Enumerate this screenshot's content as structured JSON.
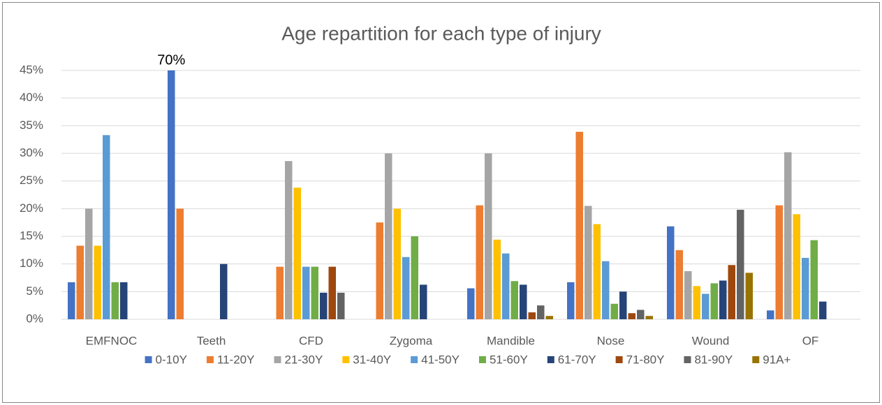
{
  "chart_data": {
    "type": "bar",
    "title": "Age repartition for each type of injury",
    "categories": [
      "EMFNOC",
      "Teeth",
      "CFD",
      "Zygoma",
      "Mandible",
      "Nose",
      "Wound",
      "OF"
    ],
    "series": [
      {
        "name": "0-10Y",
        "color": "#4472c4",
        "values": [
          6.7,
          70,
          0,
          0,
          5.6,
          6.7,
          16.8,
          1.6
        ],
        "value_labels": [
          null,
          "70%",
          null,
          null,
          null,
          null,
          null,
          null
        ]
      },
      {
        "name": "11-20Y",
        "color": "#ed7d31",
        "values": [
          13.3,
          20,
          9.5,
          17.5,
          20.6,
          33.9,
          12.5,
          20.6
        ]
      },
      {
        "name": "21-30Y",
        "color": "#a5a5a5",
        "values": [
          20,
          0,
          28.6,
          30,
          30,
          20.5,
          8.7,
          30.2
        ]
      },
      {
        "name": "31-40Y",
        "color": "#ffc000",
        "values": [
          13.3,
          0,
          23.8,
          20,
          14.4,
          17.2,
          6,
          19
        ]
      },
      {
        "name": "41-50Y",
        "color": "#5b9bd5",
        "values": [
          33.3,
          0,
          9.5,
          11.25,
          11.9,
          10.5,
          4.6,
          11.1
        ]
      },
      {
        "name": "51-60Y",
        "color": "#70ad47",
        "values": [
          6.7,
          0,
          9.5,
          15,
          6.9,
          2.8,
          6.5,
          14.3
        ]
      },
      {
        "name": "61-70Y",
        "color": "#264478",
        "values": [
          6.7,
          10,
          4.8,
          6.25,
          6.25,
          5,
          7,
          3.2
        ]
      },
      {
        "name": "71-80Y",
        "color": "#9e480e",
        "values": [
          0,
          0,
          9.5,
          0,
          1.25,
          1.1,
          9.8,
          0
        ]
      },
      {
        "name": "81-90Y",
        "color": "#636363",
        "values": [
          0,
          0,
          4.8,
          0,
          2.5,
          1.7,
          19.8,
          0
        ]
      },
      {
        "name": "91A+",
        "color": "#997300",
        "values": [
          0,
          0,
          0,
          0,
          0.6,
          0.6,
          8.4,
          0
        ]
      }
    ],
    "ylim": [
      0,
      45
    ],
    "yticks": [
      {
        "value": 0,
        "label": "0%"
      },
      {
        "value": 5,
        "label": "5%"
      },
      {
        "value": 10,
        "label": "10%"
      },
      {
        "value": 15,
        "label": "15%"
      },
      {
        "value": 20,
        "label": "20%"
      },
      {
        "value": 25,
        "label": "25%"
      },
      {
        "value": 30,
        "label": "30%"
      },
      {
        "value": 35,
        "label": "35%"
      },
      {
        "value": 40,
        "label": "40%"
      },
      {
        "value": 45,
        "label": "45%"
      }
    ],
    "grid": true,
    "legend": "bottom"
  }
}
